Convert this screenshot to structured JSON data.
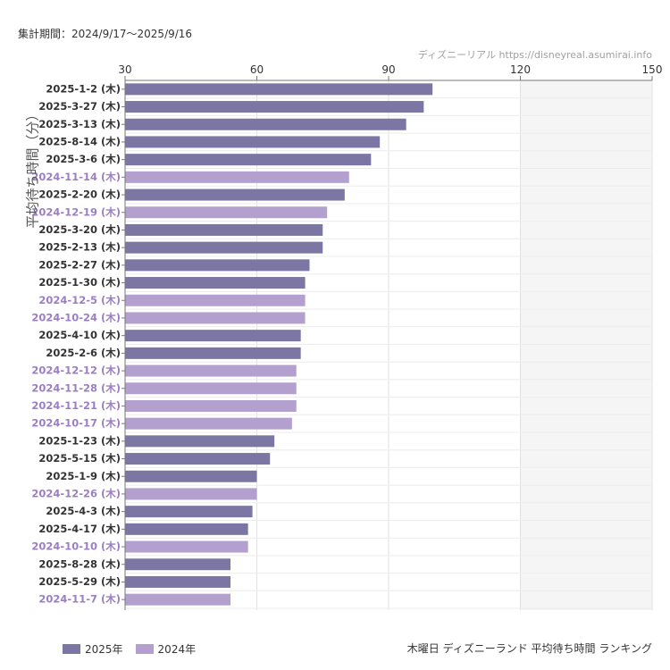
{
  "period_text": "集計期間：2024/9/17〜2025/9/16",
  "source_text": "ディズニーリアル https://disneyreal.asumirai.info",
  "footer_title": "木曜日 ディズニーランド 平均待ち時間 ランキング",
  "colors": {
    "series_2025": "#7b76a3",
    "series_2024": "#b4a0cf",
    "label_2025": "#333333",
    "label_2024": "#9b7fc2",
    "shade": "#f5f5f5",
    "grid": "#e2e2e2"
  },
  "chart_data": {
    "type": "bar",
    "orientation": "horizontal",
    "title": "",
    "xlabel": "",
    "ylabel": "平均待ち時間（分）",
    "xlim": [
      30,
      150
    ],
    "xticks": [
      30,
      60,
      90,
      120,
      150
    ],
    "shaded_region": [
      120,
      150
    ],
    "grid": true,
    "legend_position": "bottom-left",
    "series": [
      {
        "name": "2025年",
        "color": "#7b76a3"
      },
      {
        "name": "2024年",
        "color": "#b4a0cf"
      }
    ],
    "categories": [
      "2025-1-2 (木)",
      "2025-3-27 (木)",
      "2025-3-13 (木)",
      "2025-8-14 (木)",
      "2025-3-6 (木)",
      "2024-11-14 (木)",
      "2025-2-20 (木)",
      "2024-12-19 (木)",
      "2025-3-20 (木)",
      "2025-2-13 (木)",
      "2025-2-27 (木)",
      "2025-1-30 (木)",
      "2024-12-5 (木)",
      "2024-10-24 (木)",
      "2025-4-10 (木)",
      "2025-2-6 (木)",
      "2024-12-12 (木)",
      "2024-11-28 (木)",
      "2024-11-21 (木)",
      "2024-10-17 (木)",
      "2025-1-23 (木)",
      "2025-5-15 (木)",
      "2025-1-9 (木)",
      "2024-12-26 (木)",
      "2025-4-3 (木)",
      "2025-4-17 (木)",
      "2024-10-10 (木)",
      "2025-8-28 (木)",
      "2025-5-29 (木)",
      "2024-11-7 (木)"
    ],
    "values": [
      100,
      98,
      94,
      88,
      86,
      81,
      80,
      76,
      75,
      75,
      72,
      71,
      71,
      71,
      70,
      70,
      69,
      69,
      69,
      68,
      64,
      63,
      60,
      60,
      59,
      58,
      58,
      54,
      54,
      54
    ],
    "series_index": [
      0,
      0,
      0,
      0,
      0,
      1,
      0,
      1,
      0,
      0,
      0,
      0,
      1,
      1,
      0,
      0,
      1,
      1,
      1,
      1,
      0,
      0,
      0,
      1,
      0,
      0,
      1,
      0,
      0,
      1
    ]
  }
}
